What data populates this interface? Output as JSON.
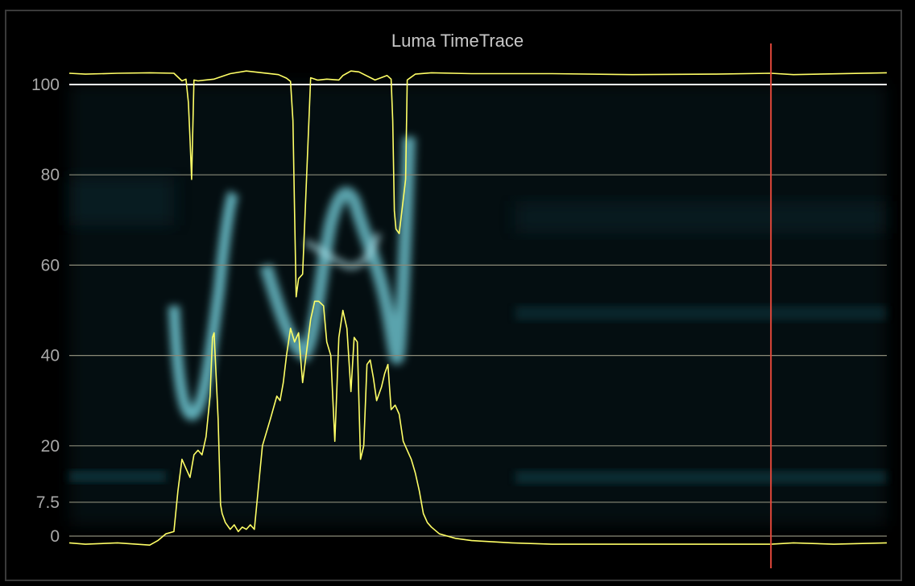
{
  "window": {
    "title": "Luma TimeTrace"
  },
  "colors": {
    "background": "#000000",
    "grid": "#8a8a78",
    "reference_100": "#ffffff",
    "trace": "#ffff66",
    "cursor": "#e0473a",
    "heatmap": "#7fe3f0"
  },
  "chart_data": {
    "type": "line",
    "title": "Luma TimeTrace",
    "xlabel": "",
    "ylabel": "",
    "ylim": [
      -5,
      110
    ],
    "xlim": [
      0,
      1016
    ],
    "grid": true,
    "yticks": [
      {
        "value": 100,
        "label": "100"
      },
      {
        "value": 80,
        "label": "80"
      },
      {
        "value": 60,
        "label": "60"
      },
      {
        "value": 40,
        "label": "40"
      },
      {
        "value": 20,
        "label": "20"
      },
      {
        "value": 7.5,
        "label": "7.5"
      },
      {
        "value": 0,
        "label": "0"
      }
    ],
    "cursor_x": 872,
    "series": [
      {
        "key": "max",
        "x": [
          0,
          20,
          60,
          100,
          130,
          140,
          145,
          148,
          150,
          152,
          155,
          160,
          180,
          200,
          220,
          240,
          260,
          270,
          275,
          278,
          280,
          282,
          285,
          290,
          300,
          305,
          308,
          310,
          320,
          335,
          340,
          345,
          350,
          360,
          380,
          395,
          400,
          402,
          404,
          406,
          410,
          414,
          418,
          420,
          430,
          450,
          500,
          600,
          700,
          800,
          872,
          900,
          1016
        ],
        "y": [
          102.5,
          102.3,
          102.5,
          102.6,
          102.5,
          100.8,
          101.2,
          96,
          88,
          79,
          101,
          100.8,
          101.2,
          102.4,
          103,
          102.6,
          102.2,
          101.4,
          100.7,
          92,
          72,
          53,
          57,
          58,
          101.5,
          101.2,
          101,
          101,
          101.2,
          101,
          102,
          102.5,
          103,
          102.8,
          101,
          102,
          101.2,
          92,
          72,
          68,
          67,
          73,
          79,
          101,
          102.3,
          102.6,
          102.4,
          102.4,
          102.2,
          102.3,
          102.5,
          102.2,
          102.6
        ]
      },
      {
        "key": "average",
        "x": [
          0,
          20,
          60,
          100,
          110,
          120,
          130,
          135,
          140,
          145,
          150,
          155,
          160,
          165,
          170,
          175,
          178,
          180,
          185,
          188,
          190,
          194,
          200,
          205,
          210,
          215,
          220,
          225,
          230,
          240,
          250,
          258,
          262,
          266,
          270,
          275,
          280,
          285,
          290,
          295,
          300,
          305,
          310,
          316,
          320,
          325,
          330,
          335,
          340,
          345,
          350,
          354,
          358,
          362,
          366,
          370,
          374,
          378,
          382,
          388,
          392,
          396,
          400,
          405,
          410,
          415,
          420,
          425,
          430,
          435,
          440,
          445,
          450,
          460,
          470,
          480,
          500,
          550,
          600,
          700,
          800,
          872,
          900,
          950,
          1016
        ],
        "y": [
          -1.5,
          -1.8,
          -1.5,
          -2.0,
          -1.0,
          0.5,
          1.0,
          10,
          17,
          15,
          13,
          18,
          19,
          18,
          22,
          31,
          44,
          45,
          26,
          7,
          5,
          3,
          1.5,
          2.5,
          1.0,
          2.0,
          1.5,
          2.5,
          1.5,
          20,
          26,
          31,
          30,
          34,
          40,
          46,
          43,
          45,
          34,
          41,
          48,
          52,
          52,
          51,
          43,
          40,
          21,
          44,
          50,
          46,
          32,
          44,
          43,
          17,
          20,
          38,
          39,
          35,
          30,
          33,
          36,
          38,
          28,
          29,
          27,
          21,
          19,
          17,
          14,
          10,
          5,
          3,
          2.0,
          0.5,
          0,
          -0.5,
          -1.0,
          -1.5,
          -1.8,
          -1.8,
          -1.8,
          -1.8,
          -1.5,
          -1.8,
          -1.5
        ]
      },
      {
        "key": "min",
        "x": [],
        "y": []
      }
    ]
  }
}
